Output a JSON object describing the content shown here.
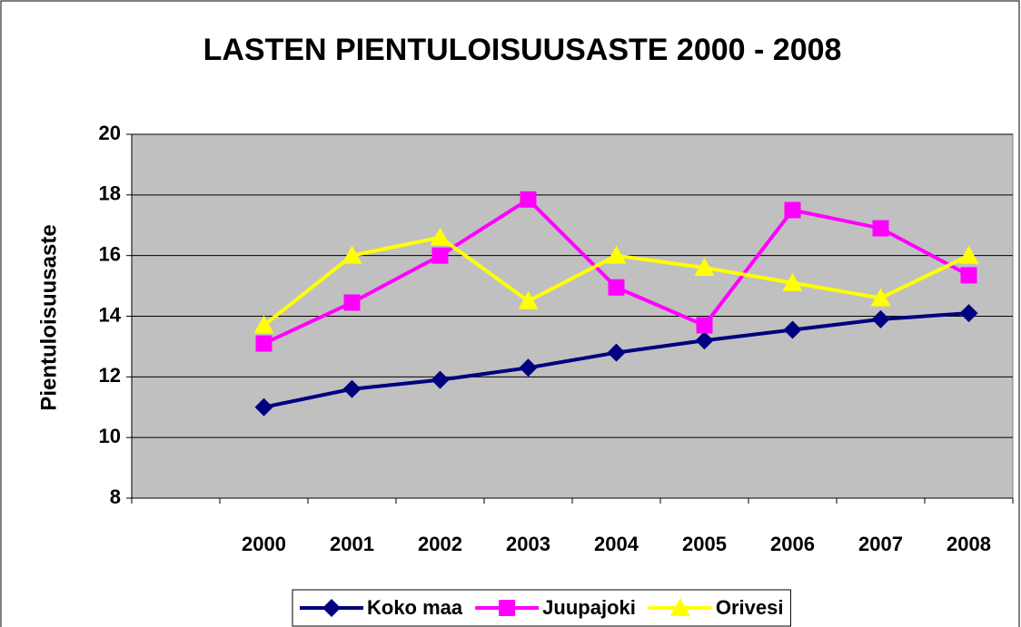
{
  "chart_data": {
    "type": "line",
    "title": "LASTEN PIENTULOISUUSASTE 2000 - 2008",
    "y_label": "Pientuloisuusaste",
    "categories": [
      null,
      "2000",
      "2001",
      "2002",
      "2003",
      "2004",
      "2005",
      "2006",
      "2007",
      "2008"
    ],
    "series": [
      {
        "name": "Koko maa",
        "color": "#000080",
        "marker": "diamond",
        "values": [
          null,
          11.0,
          11.6,
          11.9,
          12.3,
          12.8,
          13.2,
          13.55,
          13.9,
          14.1
        ]
      },
      {
        "name": "Juupajoki",
        "color": "#ff00ff",
        "marker": "square",
        "values": [
          null,
          13.1,
          14.45,
          16.0,
          17.85,
          14.95,
          13.7,
          17.5,
          16.9,
          15.35
        ]
      },
      {
        "name": "Orivesi",
        "color": "#ffff00",
        "marker": "triangle",
        "values": [
          null,
          13.7,
          16.0,
          16.6,
          14.5,
          16.0,
          15.6,
          15.1,
          14.6,
          16.0
        ]
      }
    ],
    "ylim": [
      8,
      20
    ],
    "yticks": [
      8,
      10,
      12,
      14,
      16,
      18,
      20
    ],
    "grid": true,
    "legend": "bottom"
  }
}
